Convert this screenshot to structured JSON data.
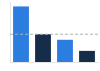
{
  "chart_data": {
    "type": "bar",
    "categories": [
      null,
      null,
      null,
      null
    ],
    "values": [
      25,
      12.5,
      10,
      5
    ],
    "colors": [
      "#2c7de0",
      "#162d4a",
      "#2c7de0",
      "#162d4a"
    ],
    "reference_line": 12.5,
    "ylim": [
      0,
      27
    ],
    "grid": false,
    "legend": false,
    "tick_labels": false
  }
}
